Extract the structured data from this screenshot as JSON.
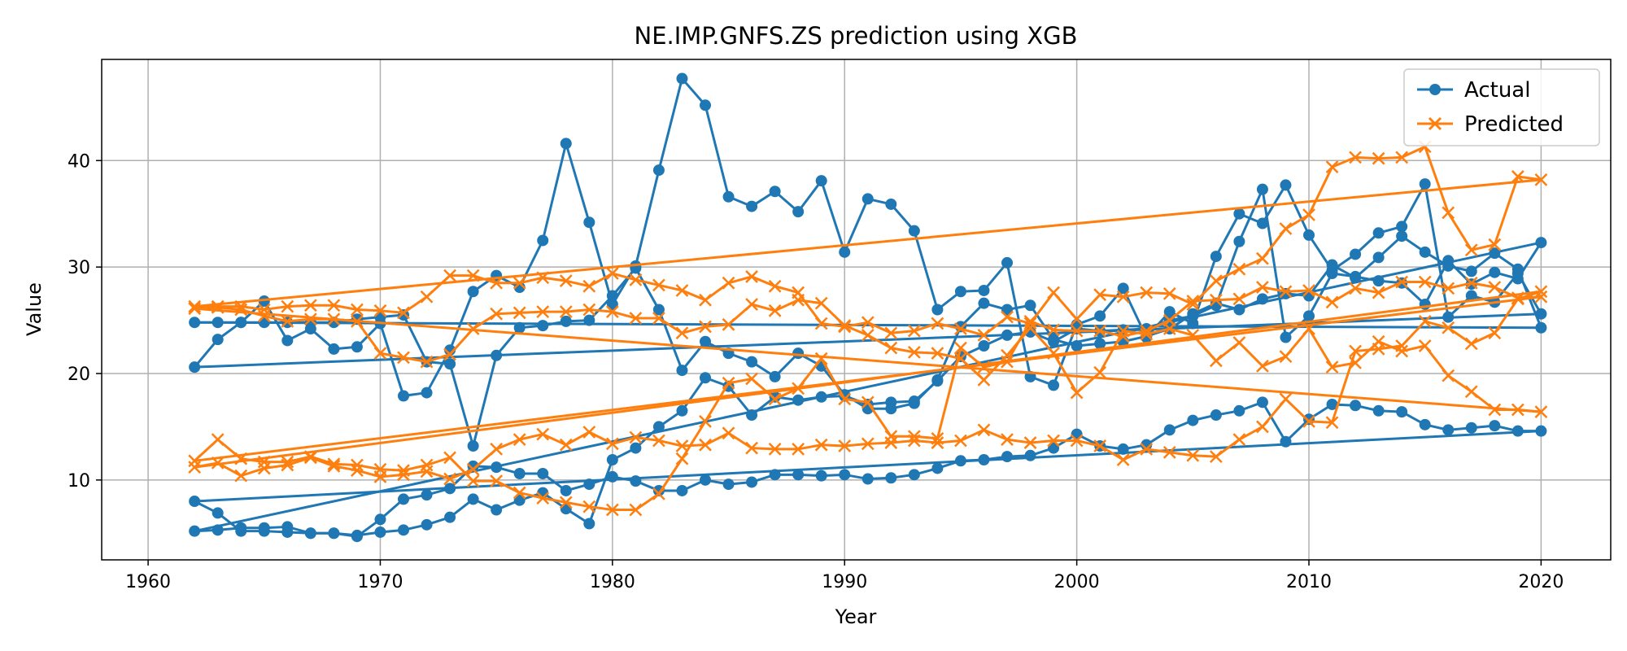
{
  "chart_data": {
    "type": "line",
    "title": "NE.IMP.GNFS.ZS prediction using XGB",
    "xlabel": "Year",
    "ylabel": "Value",
    "xlim": [
      1958,
      2023
    ],
    "ylim": [
      2.5,
      49.5
    ],
    "xticks": [
      1960,
      1970,
      1980,
      1990,
      2000,
      2010,
      2020
    ],
    "yticks": [
      10,
      20,
      30,
      40
    ],
    "grid": true,
    "legend_position": "top-right",
    "colors": {
      "actual": "#1f77b4",
      "predicted": "#ff7f0e"
    },
    "x": [
      1962,
      1963,
      1964,
      1965,
      1966,
      1967,
      1968,
      1969,
      1970,
      1971,
      1972,
      1973,
      1974,
      1975,
      1976,
      1977,
      1978,
      1979,
      1980,
      1981,
      1982,
      1983,
      1984,
      1985,
      1986,
      1987,
      1988,
      1989,
      1990,
      1991,
      1992,
      1993,
      1994,
      1995,
      1996,
      1997,
      1998,
      1999,
      2000,
      2001,
      2002,
      2003,
      2004,
      2005,
      2006,
      2007,
      2008,
      2009,
      2010,
      2011,
      2012,
      2013,
      2014,
      2015,
      2016,
      2017,
      2018,
      2019,
      2020
    ],
    "series": [
      {
        "name": "Actual",
        "marker": "circle",
        "segments": [
          [
            20.6,
            23.2,
            24.8,
            26.8,
            23.1,
            24.2,
            22.3,
            22.5,
            24.7,
            17.9,
            18.2,
            22.2,
            27.7,
            29.2,
            28.1,
            32.5,
            41.6,
            34.2,
            26.5,
            30.1,
            39.1,
            47.7,
            45.2,
            36.6,
            35.7,
            37.1,
            35.2,
            38.1,
            31.4,
            36.4,
            35.9,
            33.4,
            26.0,
            27.7,
            27.8,
            30.4,
            19.7,
            18.9,
            24.6,
            25.4,
            28.0,
            23.4,
            25.8,
            24.7,
            31.0,
            35.0,
            34.1,
            37.7,
            33.0,
            29.7,
            31.2,
            33.2,
            33.8,
            37.8,
            25.3,
            27.3,
            26.7,
            29.4,
            25.6
          ],
          [
            24.8,
            24.8,
            24.8,
            24.8,
            24.8,
            24.8,
            24.8,
            25.1,
            25.3,
            25.5,
            21.1,
            20.9,
            13.2,
            21.7,
            24.3,
            24.5,
            24.9,
            25.0,
            27.3,
            29.9,
            26.0,
            20.3,
            23.0,
            21.9,
            21.1,
            19.7,
            21.9,
            20.7,
            18.0,
            16.7,
            16.7,
            17.2,
            19.4,
            24.4,
            26.6,
            26.0,
            26.4,
            23.2,
            22.6,
            22.8,
            23.0,
            23.5,
            24.2,
            25.6,
            26.6,
            26.0,
            27.0,
            27.5,
            27.3,
            30.2,
            29.0,
            30.9,
            32.9,
            31.4,
            30.1,
            29.6,
            31.3,
            29.8,
            24.3
          ],
          [
            8.0,
            6.9,
            5.2,
            5.2,
            5.1,
            5.0,
            5.0,
            4.7,
            6.3,
            8.2,
            8.6,
            9.2,
            11.3,
            11.2,
            10.6,
            10.6,
            9.0,
            9.6,
            10.3,
            9.9,
            9.0,
            9.0,
            10.0,
            9.6,
            9.8,
            10.5,
            10.5,
            10.4,
            10.5,
            10.1,
            10.2,
            10.5,
            11.1,
            11.8,
            11.9,
            12.2,
            12.3,
            13.0,
            14.3,
            13.2,
            12.9,
            13.3,
            14.7,
            15.6,
            16.1,
            16.5,
            17.3,
            13.6,
            15.7,
            17.1,
            17.0,
            16.5,
            16.4,
            15.2,
            14.7,
            14.9,
            15.1,
            14.6,
            14.6
          ],
          [
            5.2,
            5.3,
            5.5,
            5.5,
            5.6,
            5.0,
            5.0,
            4.8,
            5.1,
            5.3,
            5.8,
            6.5,
            8.2,
            7.2,
            8.1,
            8.8,
            7.3,
            5.9,
            11.9,
            13.0,
            15.0,
            16.5,
            19.6,
            18.8,
            16.1,
            17.8,
            17.5,
            17.8,
            17.9,
            17.1,
            17.3,
            17.4,
            19.3,
            21.6,
            22.6,
            23.6,
            23.9,
            23.0,
            24.2,
            24.0,
            24.1,
            24.2,
            25.0,
            25.4,
            26.4,
            32.4,
            37.3,
            23.4,
            25.4,
            29.4,
            29.1,
            28.7,
            28.5,
            26.5,
            30.6,
            28.4,
            29.5,
            28.9,
            32.3
          ]
        ]
      },
      {
        "name": "Predicted",
        "marker": "x",
        "segments": [
          [
            26.3,
            26.3,
            26.3,
            26.0,
            26.3,
            26.4,
            26.4,
            26.0,
            25.9,
            25.7,
            27.2,
            29.2,
            29.2,
            28.5,
            28.5,
            29.0,
            28.7,
            28.2,
            29.4,
            28.8,
            28.3,
            27.8,
            26.9,
            28.5,
            29.1,
            28.2,
            27.6,
            24.7,
            24.4,
            24.8,
            23.8,
            24.0,
            24.7,
            24.2,
            23.6,
            25.3,
            24.7,
            27.6,
            25.1,
            27.4,
            27.2,
            27.6,
            27.5,
            26.5,
            28.7,
            29.8,
            30.8,
            33.6,
            34.9,
            39.4,
            40.3,
            40.2,
            40.3,
            41.3,
            35.1,
            31.6,
            32.1,
            38.5,
            38.2
          ],
          [
            26.1,
            26.2,
            26.0,
            25.4,
            24.9,
            25.1,
            25.1,
            24.9,
            21.9,
            21.5,
            21.1,
            21.8,
            24.2,
            25.6,
            25.7,
            25.8,
            25.8,
            26.0,
            25.8,
            25.2,
            25.2,
            23.8,
            24.4,
            24.6,
            26.5,
            25.9,
            26.9,
            26.6,
            24.5,
            23.6,
            22.4,
            22.0,
            21.9,
            21.4,
            19.4,
            21.7,
            24.3,
            21.9,
            18.2,
            20.1,
            24.0,
            23.7,
            24.2,
            23.6,
            21.2,
            22.9,
            20.7,
            21.6,
            24.2,
            20.6,
            21.0,
            23.0,
            22.1,
            22.6,
            19.8,
            18.3,
            16.6,
            16.6,
            16.4
          ],
          [
            11.8,
            13.8,
            12.0,
            11.7,
            11.7,
            12.2,
            11.5,
            11.4,
            11.0,
            10.9,
            11.4,
            12.1,
            9.9,
            9.9,
            8.8,
            8.3,
            7.9,
            7.5,
            7.2,
            7.2,
            8.7,
            12.0,
            15.5,
            19.1,
            19.5,
            17.6,
            18.6,
            21.4,
            17.6,
            17.3,
            14.1,
            14.1,
            13.9,
            22.4,
            20.6,
            21.1,
            24.9,
            24.1,
            24.0,
            24.0,
            23.5,
            24.0,
            25.0,
            26.8,
            26.9,
            27.0,
            28.1,
            27.7,
            27.8,
            26.7,
            28.0,
            27.6,
            28.6,
            28.6,
            28.0,
            28.5,
            28.1,
            27.1,
            27.2
          ],
          [
            11.2,
            11.6,
            10.4,
            11.1,
            11.4,
            12.1,
            11.3,
            10.9,
            10.3,
            10.5,
            10.8,
            10.1,
            11.0,
            12.9,
            13.8,
            14.3,
            13.3,
            14.5,
            13.4,
            14.0,
            13.7,
            13.2,
            13.3,
            14.4,
            13.0,
            12.9,
            12.9,
            13.3,
            13.2,
            13.4,
            13.5,
            13.7,
            13.5,
            13.7,
            14.7,
            13.8,
            13.5,
            13.7,
            13.7,
            13.2,
            11.9,
            12.9,
            12.6,
            12.3,
            12.2,
            13.8,
            15.0,
            17.6,
            15.5,
            15.4,
            22.1,
            22.3,
            22.6,
            24.9,
            24.3,
            22.8,
            23.8,
            27.0,
            27.7
          ]
        ]
      }
    ]
  },
  "legend": {
    "items": [
      "Actual",
      "Predicted"
    ]
  }
}
